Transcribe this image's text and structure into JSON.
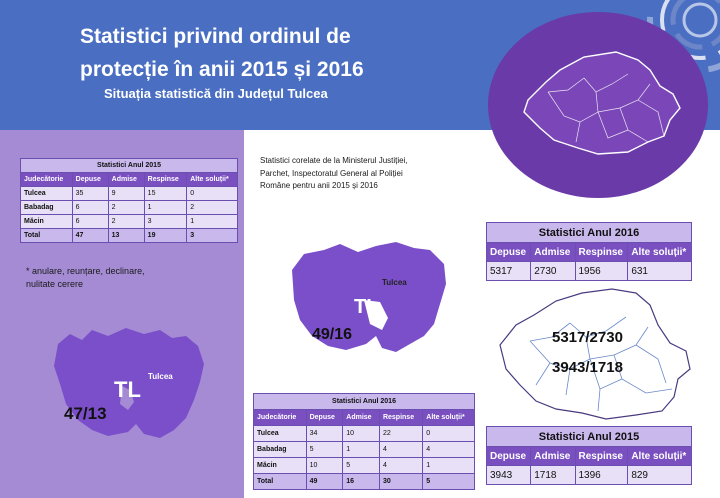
{
  "header": {
    "title": "Statistici privind ordinul de protecție în anii 2015 și 2016",
    "subtitle": "Situația statistică din Județul Tulcea"
  },
  "source_note": "Statistici corelate de la Ministerul Justiției, Parchet, Inspectoratul General al Poliției Române pentru anii 2015 și 2016",
  "footnote": "* anulare, reunțare, declinare, nulitate cerere",
  "table_2015": {
    "caption": "Statistici Anul 2015",
    "headers": [
      "Judecătorie",
      "Depuse",
      "Admise",
      "Respinse",
      "Alte soluții*"
    ],
    "rows": [
      [
        "Tulcea",
        "35",
        "9",
        "15",
        "0"
      ],
      [
        "Babadag",
        "6",
        "2",
        "1",
        "2"
      ],
      [
        "Măcin",
        "6",
        "2",
        "3",
        "1"
      ]
    ],
    "total": [
      "Total",
      "47",
      "13",
      "19",
      "3"
    ]
  },
  "table_2016": {
    "caption": "Statistici Anul 2016",
    "headers": [
      "Judecătorie",
      "Depuse",
      "Admise",
      "Respinse",
      "Alte soluții*"
    ],
    "rows": [
      [
        "Tulcea",
        "34",
        "10",
        "22",
        "0"
      ],
      [
        "Babadag",
        "5",
        "1",
        "4",
        "4"
      ],
      [
        "Măcin",
        "10",
        "5",
        "4",
        "1"
      ]
    ],
    "total": [
      "Total",
      "49",
      "16",
      "30",
      "5"
    ]
  },
  "national_2016": {
    "caption": "Statistici Anul 2016",
    "headers": [
      "Depuse",
      "Admise",
      "Respinse",
      "Alte soluții*"
    ],
    "values": [
      "5317",
      "2730",
      "1956",
      "631"
    ]
  },
  "national_2015": {
    "caption": "Statistici Anul 2015",
    "headers": [
      "Depuse",
      "Admise",
      "Respinse",
      "Alte soluții*"
    ],
    "values": [
      "3943",
      "1718",
      "1396",
      "829"
    ]
  },
  "map_2015": {
    "code": "TL",
    "name": "Tulcea",
    "ratio": "47/13"
  },
  "map_2016": {
    "code": "TL",
    "name": "Tulcea",
    "ratio": "49/16"
  },
  "romania_map": {
    "ratio_2016": "5317/2730",
    "ratio_2015": "3943/1718"
  },
  "colors": {
    "header": "#4a6fc2",
    "panel": "#a48bd4",
    "county": "#7b4fc9",
    "table_head": "#7a50c0"
  }
}
